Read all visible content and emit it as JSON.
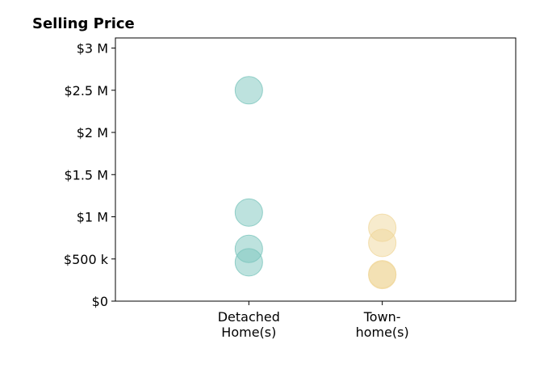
{
  "chart_data": {
    "type": "scatter",
    "title": "Selling Price",
    "xlabel": "",
    "ylabel": "",
    "categories": [
      {
        "lines": [
          "Detached",
          "Home(s)"
        ]
      },
      {
        "lines": [
          "Town-",
          "home(s)"
        ]
      }
    ],
    "y_ticks": [
      {
        "value": 0,
        "label": "$0"
      },
      {
        "value": 500000,
        "label": "$500 k"
      },
      {
        "value": 1000000,
        "label": "$1 M"
      },
      {
        "value": 1500000,
        "label": "$1.5 M"
      },
      {
        "value": 2000000,
        "label": "$2 M"
      },
      {
        "value": 2500000,
        "label": "$2.5 M"
      },
      {
        "value": 3000000,
        "label": "$3 M"
      }
    ],
    "ylim": [
      0,
      3120000
    ],
    "xlim": [
      -1,
      2
    ],
    "grid": false,
    "series": [
      {
        "category_index": 0,
        "color": "#7cc6bd",
        "opacity": 0.5,
        "values": [
          2500000,
          1050000,
          620000,
          460000
        ]
      },
      {
        "category_index": 1,
        "color": "#f0d79b",
        "opacity": 0.5,
        "values": [
          870000,
          690000,
          320000,
          310000
        ]
      }
    ]
  }
}
